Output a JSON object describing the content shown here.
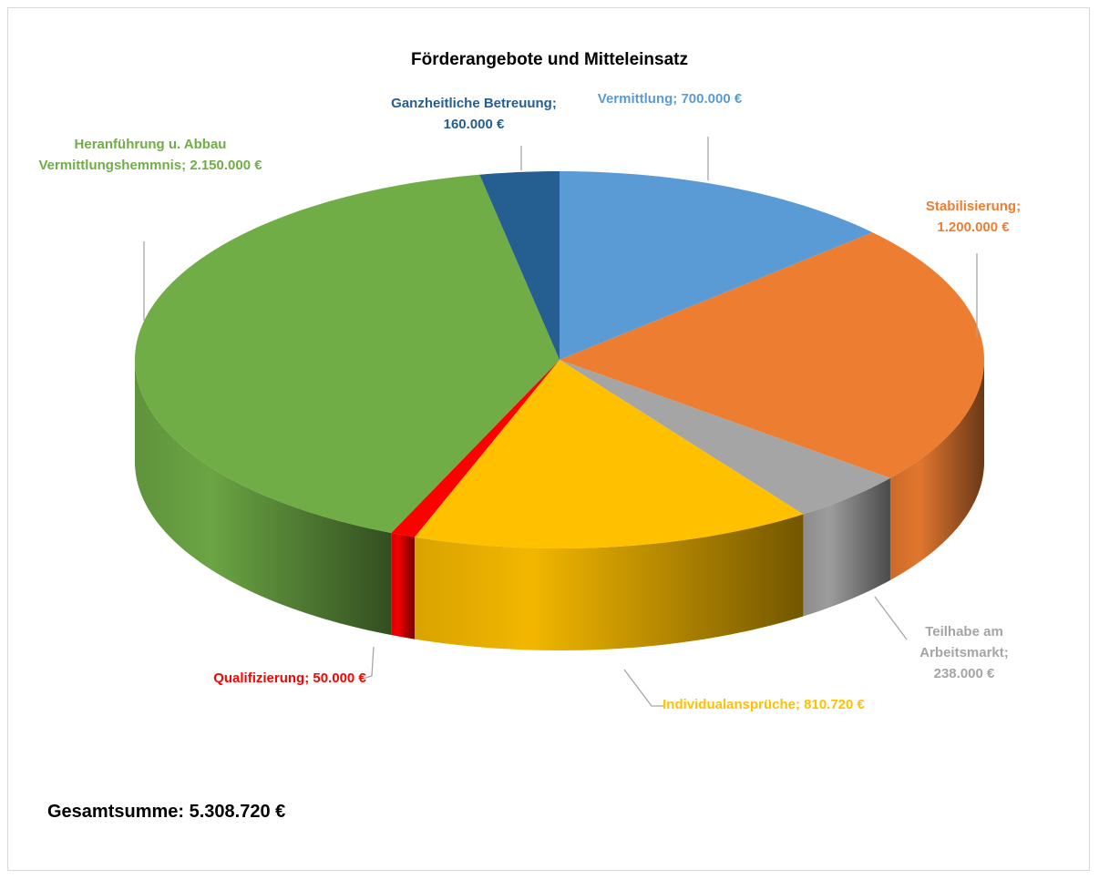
{
  "chart_data": {
    "type": "pie",
    "title": "Förderangebote und Mitteleinsatz",
    "categories": [
      "Vermittlung;",
      "Stabilisierung;",
      "Teilhabe am Arbeitsmarkt;",
      "Individualansprüche;",
      "Qualifizierung;",
      "Heranführung u. Abbau Vermittlungshemmnis;",
      "Ganzheitliche Betreuung;"
    ],
    "values": [
      700000,
      1200000,
      238000,
      810720,
      50000,
      2150000,
      160000
    ],
    "value_labels": [
      "700.000 €",
      "1.200.000 €",
      "238.000 €",
      "810.720 €",
      "50.000 €",
      "2.150.000 €",
      "160.000 €"
    ],
    "colors": [
      "#5b9bd5",
      "#ed7d31",
      "#a5a5a5",
      "#ffc000",
      "#ff0000",
      "#70ad47",
      "#255e91"
    ],
    "annotation": "Gesamtsumme: 5.308.720 €"
  }
}
